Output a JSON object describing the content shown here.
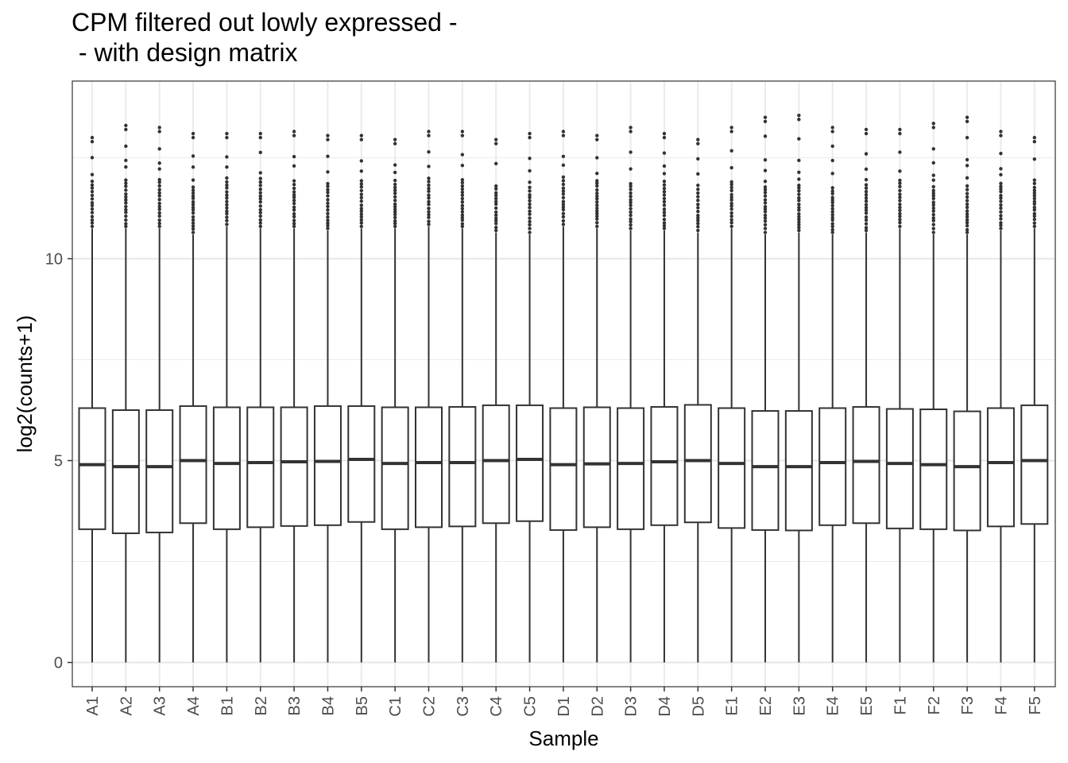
{
  "chart_data": {
    "type": "boxplot",
    "title": "CPM filtered out lowly expressed -",
    "subtitle": " - with design matrix",
    "xlabel": "Sample",
    "ylabel": "log2(counts+1)",
    "ylim": [
      -0.6,
      14.4
    ],
    "yticks": [
      0,
      5,
      10
    ],
    "grid": true,
    "categories": [
      "A1",
      "A2",
      "A3",
      "A4",
      "B1",
      "B2",
      "B3",
      "B4",
      "B5",
      "C1",
      "C2",
      "C3",
      "C4",
      "C5",
      "D1",
      "D2",
      "D3",
      "D4",
      "D5",
      "E1",
      "E2",
      "E3",
      "E4",
      "E5",
      "F1",
      "F2",
      "F3",
      "F4",
      "F5"
    ],
    "boxes": [
      {
        "min": 0,
        "q1": 3.3,
        "median": 4.9,
        "q3": 6.3,
        "whisker_high": 10.75,
        "max": 13.0
      },
      {
        "min": 0,
        "q1": 3.2,
        "median": 4.85,
        "q3": 6.25,
        "whisker_high": 10.75,
        "max": 13.3
      },
      {
        "min": 0,
        "q1": 3.22,
        "median": 4.85,
        "q3": 6.25,
        "whisker_high": 10.75,
        "max": 13.25
      },
      {
        "min": 0,
        "q1": 3.45,
        "median": 5.0,
        "q3": 6.35,
        "whisker_high": 10.6,
        "max": 13.1
      },
      {
        "min": 0,
        "q1": 3.3,
        "median": 4.93,
        "q3": 6.32,
        "whisker_high": 10.8,
        "max": 13.1
      },
      {
        "min": 0,
        "q1": 3.35,
        "median": 4.95,
        "q3": 6.32,
        "whisker_high": 10.75,
        "max": 13.1
      },
      {
        "min": 0,
        "q1": 3.38,
        "median": 4.97,
        "q3": 6.32,
        "whisker_high": 10.75,
        "max": 13.15
      },
      {
        "min": 0,
        "q1": 3.4,
        "median": 4.98,
        "q3": 6.35,
        "whisker_high": 10.7,
        "max": 13.05
      },
      {
        "min": 0,
        "q1": 3.48,
        "median": 5.03,
        "q3": 6.35,
        "whisker_high": 10.75,
        "max": 13.05
      },
      {
        "min": 0,
        "q1": 3.3,
        "median": 4.93,
        "q3": 6.32,
        "whisker_high": 10.75,
        "max": 12.95
      },
      {
        "min": 0,
        "q1": 3.35,
        "median": 4.95,
        "q3": 6.32,
        "whisker_high": 10.8,
        "max": 13.15
      },
      {
        "min": 0,
        "q1": 3.37,
        "median": 4.95,
        "q3": 6.33,
        "whisker_high": 10.75,
        "max": 13.15
      },
      {
        "min": 0,
        "q1": 3.45,
        "median": 5.0,
        "q3": 6.37,
        "whisker_high": 10.65,
        "max": 12.95
      },
      {
        "min": 0,
        "q1": 3.5,
        "median": 5.03,
        "q3": 6.37,
        "whisker_high": 10.6,
        "max": 13.1
      },
      {
        "min": 0,
        "q1": 3.28,
        "median": 4.9,
        "q3": 6.3,
        "whisker_high": 10.8,
        "max": 13.15
      },
      {
        "min": 0,
        "q1": 3.35,
        "median": 4.92,
        "q3": 6.32,
        "whisker_high": 10.75,
        "max": 13.05
      },
      {
        "min": 0,
        "q1": 3.3,
        "median": 4.93,
        "q3": 6.3,
        "whisker_high": 10.7,
        "max": 13.25
      },
      {
        "min": 0,
        "q1": 3.4,
        "median": 4.97,
        "q3": 6.33,
        "whisker_high": 10.7,
        "max": 13.1
      },
      {
        "min": 0,
        "q1": 3.47,
        "median": 5.0,
        "q3": 6.38,
        "whisker_high": 10.65,
        "max": 12.95
      },
      {
        "min": 0,
        "q1": 3.33,
        "median": 4.93,
        "q3": 6.3,
        "whisker_high": 10.75,
        "max": 13.25
      },
      {
        "min": 0,
        "q1": 3.28,
        "median": 4.85,
        "q3": 6.23,
        "whisker_high": 10.6,
        "max": 13.5
      },
      {
        "min": 0,
        "q1": 3.27,
        "median": 4.85,
        "q3": 6.23,
        "whisker_high": 10.65,
        "max": 13.55
      },
      {
        "min": 0,
        "q1": 3.4,
        "median": 4.95,
        "q3": 6.3,
        "whisker_high": 10.6,
        "max": 13.25
      },
      {
        "min": 0,
        "q1": 3.45,
        "median": 4.98,
        "q3": 6.33,
        "whisker_high": 10.65,
        "max": 13.2
      },
      {
        "min": 0,
        "q1": 3.32,
        "median": 4.93,
        "q3": 6.28,
        "whisker_high": 10.75,
        "max": 13.2
      },
      {
        "min": 0,
        "q1": 3.3,
        "median": 4.9,
        "q3": 6.27,
        "whisker_high": 10.6,
        "max": 13.35
      },
      {
        "min": 0,
        "q1": 3.27,
        "median": 4.85,
        "q3": 6.22,
        "whisker_high": 10.6,
        "max": 13.5
      },
      {
        "min": 0,
        "q1": 3.37,
        "median": 4.95,
        "q3": 6.3,
        "whisker_high": 10.7,
        "max": 13.15
      },
      {
        "min": 0,
        "q1": 3.43,
        "median": 5.0,
        "q3": 6.37,
        "whisker_high": 10.75,
        "max": 13.0
      }
    ]
  }
}
